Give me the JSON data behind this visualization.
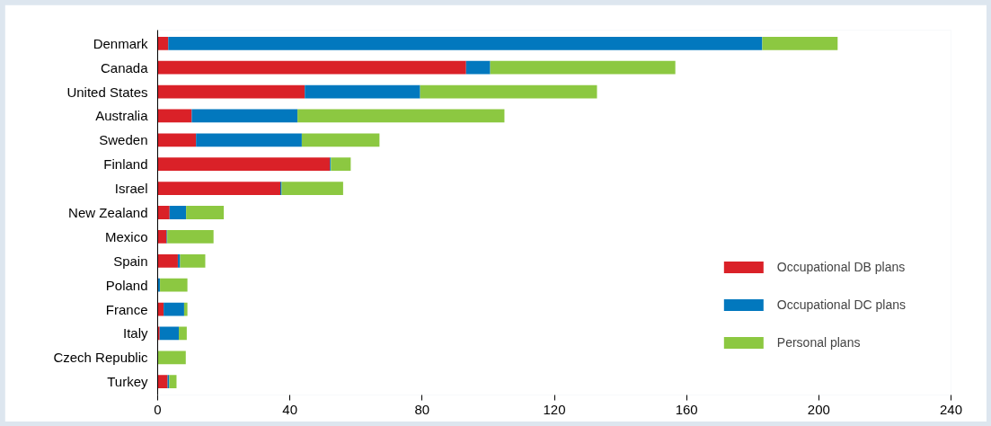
{
  "chart_data": {
    "type": "bar",
    "orientation": "horizontal",
    "stacked": true,
    "categories": [
      "Denmark",
      "Canada",
      "United States",
      "Australia",
      "Sweden",
      "Finland",
      "Israel",
      "New Zealand",
      "Mexico",
      "Spain",
      "Poland",
      "France",
      "Italy",
      "Czech Republic",
      "Turkey"
    ],
    "series": [
      {
        "name": "Occupational DB plans",
        "color": "#da2128",
        "values": [
          3.2,
          93.3,
          44.5,
          10.3,
          11.6,
          52.1,
          37.1,
          3.6,
          2.7,
          6.1,
          0,
          1.8,
          0.6,
          0,
          3.0
        ]
      },
      {
        "name": "Occupational DC plans",
        "color": "#0278be",
        "values": [
          179.7,
          7.3,
          34.9,
          32,
          32,
          0.3,
          0.4,
          5,
          0.2,
          0.7,
          0.7,
          6.2,
          5.8,
          0,
          0.5
        ]
      },
      {
        "name": "Personal plans",
        "color": "#8cc841",
        "values": [
          22.8,
          56,
          53.5,
          62.6,
          23.5,
          6,
          18.6,
          11.4,
          14,
          7.6,
          8.3,
          1.0,
          2.4,
          8.5,
          2.2
        ]
      }
    ],
    "xlim": [
      0,
      240
    ],
    "xticks": [
      0,
      40,
      80,
      120,
      160,
      200,
      240
    ],
    "grid": false,
    "legend": "bottom right"
  }
}
